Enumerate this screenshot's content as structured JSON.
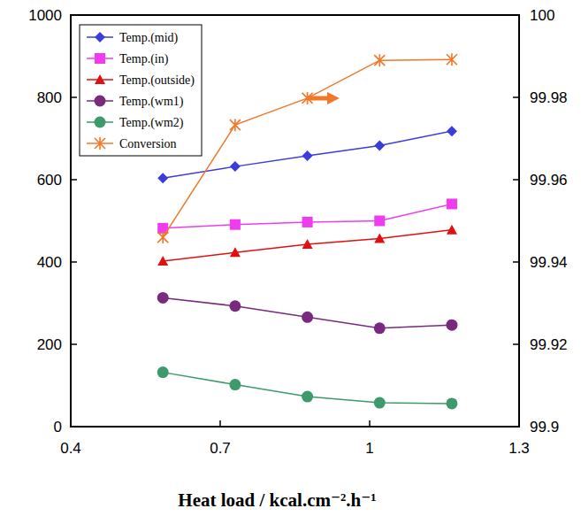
{
  "chart_data": {
    "type": "line",
    "x_label": "Heat load / kcal.cm⁻².h⁻¹",
    "x": [
      0.585,
      0.73,
      0.875,
      1.02,
      1.165
    ],
    "xlim": [
      0.4,
      1.3
    ],
    "xticks": [
      0.4,
      0.7,
      1,
      1.3
    ],
    "ylim": [
      0,
      1000
    ],
    "yticks": [
      0,
      200,
      400,
      600,
      800,
      1000
    ],
    "y2lim": [
      99.9,
      100
    ],
    "y2ticks": [
      99.9,
      99.92,
      99.94,
      99.96,
      99.98,
      100
    ],
    "grid": false,
    "legend": "upper left",
    "series": [
      {
        "name": "Temp.(mid)",
        "color": "#3c3cdc",
        "marker": "diamond",
        "values": [
          604,
          632,
          658,
          683,
          718
        ]
      },
      {
        "name": "Temp.(in)",
        "color": "#ee3cee",
        "marker": "square",
        "values": [
          482,
          491,
          497,
          500,
          541
        ]
      },
      {
        "name": "Temp.(outside)",
        "color": "#e01010",
        "marker": "triangle",
        "values": [
          402,
          423,
          443,
          457,
          478
        ]
      },
      {
        "name": "Temp.(wm1)",
        "color": "#7a2a7e",
        "marker": "circle",
        "values": [
          313,
          293,
          266,
          239,
          247
        ]
      },
      {
        "name": "Temp.(wm2)",
        "color": "#3e9a6c",
        "marker": "circle",
        "values": [
          132,
          102,
          73,
          58,
          56
        ]
      },
      {
        "name": "Conversion",
        "color": "#f07828",
        "marker": "star",
        "axis": "y2",
        "values": [
          99.946,
          99.9733,
          99.9798,
          99.989,
          99.9892
        ]
      }
    ]
  }
}
